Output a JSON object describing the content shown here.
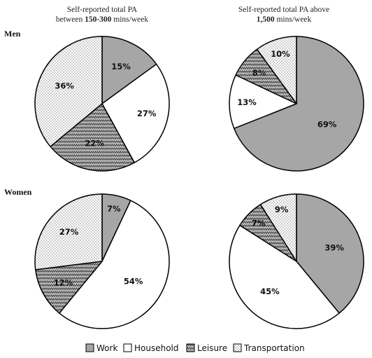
{
  "columns": [
    {
      "title_line1": "Self-reported total PA",
      "title_pre": "between ",
      "title_bold": "150-300",
      "title_post": " mins/week"
    },
    {
      "title_line1": "Self-reported total PA above",
      "title_pre": "",
      "title_bold": "1,500",
      "title_post": " mins/week"
    }
  ],
  "rows": [
    "Men",
    "Women"
  ],
  "legend": [
    {
      "label": "Work",
      "pattern": "solid-grey"
    },
    {
      "label": "Household",
      "pattern": "white"
    },
    {
      "label": "Leisure",
      "pattern": "zigzag"
    },
    {
      "label": "Transportation",
      "pattern": "dots"
    }
  ],
  "colors": {
    "work": "#a6a6a6",
    "household": "#ffffff",
    "stroke": "#000000"
  },
  "chart_data": [
    {
      "type": "pie",
      "row": "Men",
      "column": "Self-reported total PA between 150-300 mins/week",
      "categories": [
        "Work",
        "Household",
        "Leisure",
        "Transportation"
      ],
      "values": [
        15,
        27,
        22,
        36
      ]
    },
    {
      "type": "pie",
      "row": "Men",
      "column": "Self-reported total PA above 1,500 mins/week",
      "categories": [
        "Work",
        "Household",
        "Leisure",
        "Transportation"
      ],
      "values": [
        69,
        13,
        8,
        10
      ]
    },
    {
      "type": "pie",
      "row": "Women",
      "column": "Self-reported total PA between 150-300 mins/week",
      "categories": [
        "Work",
        "Household",
        "Leisure",
        "Transportation"
      ],
      "values": [
        7,
        54,
        12,
        27
      ]
    },
    {
      "type": "pie",
      "row": "Women",
      "column": "Self-reported total PA above 1,500 mins/week",
      "categories": [
        "Work",
        "Household",
        "Leisure",
        "Transportation"
      ],
      "values": [
        39,
        45,
        7,
        9
      ]
    }
  ]
}
